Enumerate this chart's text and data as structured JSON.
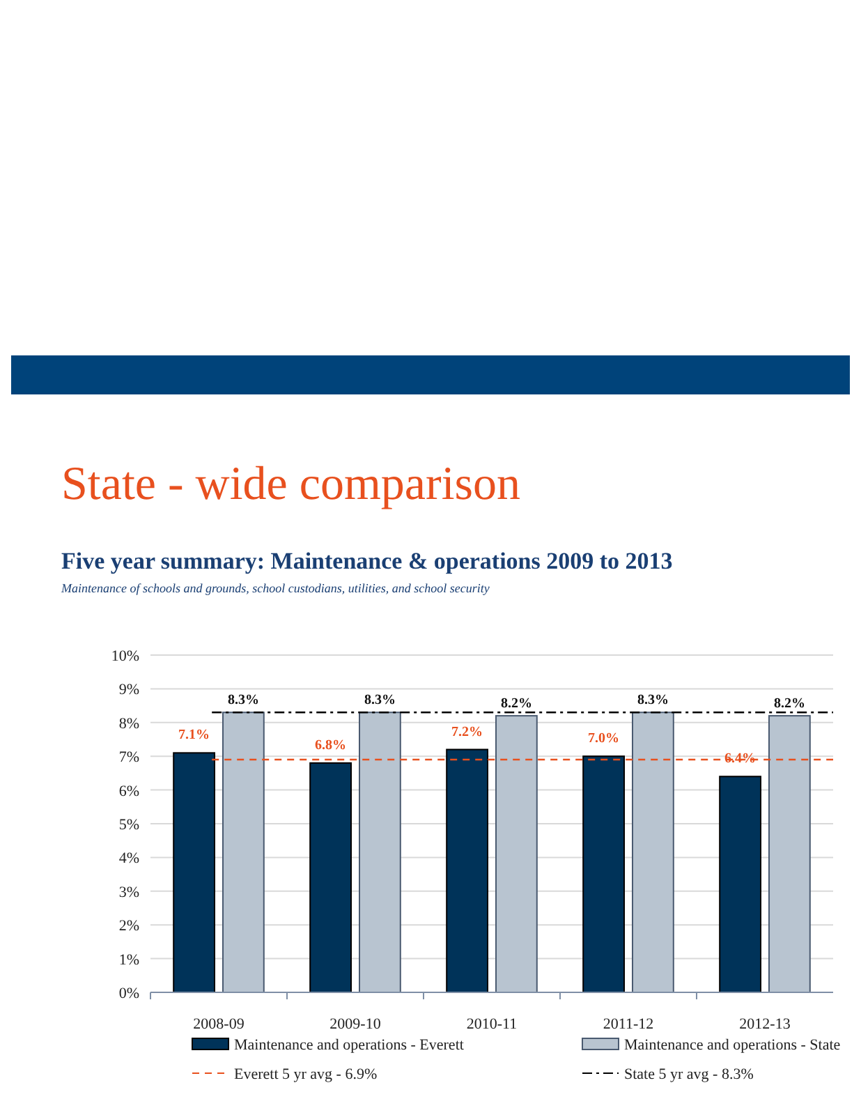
{
  "chart_data": {
    "type": "bar",
    "title": "State - wide comparison",
    "subtitle": "Five year summary: Maintenance & operations 2009 to 2013",
    "annotations": [
      "Maintenance of schools and grounds, school custodians, utilities, and school security"
    ],
    "categories": [
      "2008-09",
      "2009-10",
      "2010-11",
      "2011-12",
      "2012-13"
    ],
    "series": [
      {
        "name": "Maintenance and operations - Everett",
        "color": "#003359",
        "values": [
          7.1,
          6.8,
          7.2,
          7.0,
          6.4
        ],
        "value_labels": [
          "7.1%",
          "6.8%",
          "7.2%",
          "7.0%",
          "6.4%"
        ]
      },
      {
        "name": "Maintenance and operations - State",
        "color": "#b8c4d0",
        "values": [
          8.3,
          8.3,
          8.2,
          8.3,
          8.2
        ],
        "value_labels": [
          "8.3%",
          "8.3%",
          "8.2%",
          "8.3%",
          "8.2%"
        ]
      }
    ],
    "ylim": [
      0,
      10
    ],
    "yticks": [
      {
        "value": 0,
        "label": "0%"
      },
      {
        "value": 1,
        "label": "1%"
      },
      {
        "value": 2,
        "label": "2%"
      },
      {
        "value": 3,
        "label": "3%"
      },
      {
        "value": 4,
        "label": "4%"
      },
      {
        "value": 5,
        "label": "5%"
      },
      {
        "value": 6,
        "label": "6%"
      },
      {
        "value": 7,
        "label": "7%"
      },
      {
        "value": 8,
        "label": "8%"
      },
      {
        "value": 9,
        "label": "9%"
      },
      {
        "value": 10,
        "label": "10%"
      }
    ],
    "ref_lines": [
      {
        "axis": "y",
        "value": 6.9,
        "label": "Everett 5 yr avg - 6.9%",
        "color": "#e8501e",
        "line_style": "dashed"
      },
      {
        "axis": "y",
        "value": 8.3,
        "label": "State 5 yr avg - 8.3%",
        "color": "#000000",
        "line_style": "dashdot"
      }
    ],
    "grid": "y",
    "legend": "bottom"
  }
}
